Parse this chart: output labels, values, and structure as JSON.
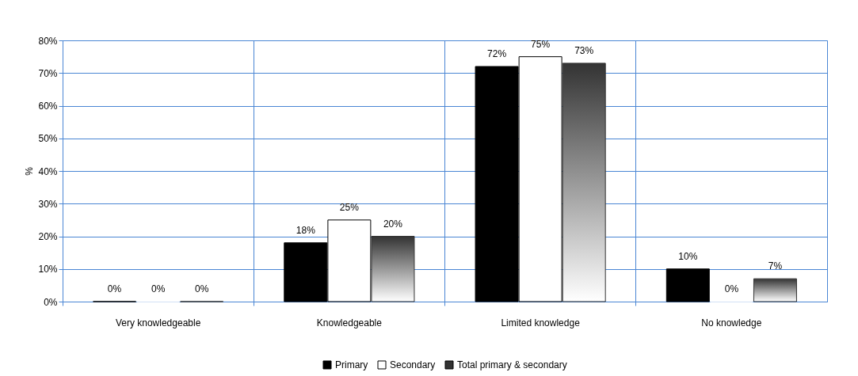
{
  "chart_data": {
    "type": "bar",
    "ylabel": "%",
    "categories": [
      "Very knowledgeable",
      "Knowledgeable",
      "Limited knowledge",
      "No knowledge"
    ],
    "series": [
      {
        "name": "Primary",
        "color": "#000000",
        "values": [
          0,
          18,
          72,
          10
        ],
        "value_labels": [
          "0%",
          "18%",
          "72%",
          "10%"
        ]
      },
      {
        "name": "Secondary",
        "color": "#ffffff",
        "values": [
          0,
          25,
          75,
          0
        ],
        "value_labels": [
          "0%",
          "25%",
          "75%",
          "0%"
        ]
      },
      {
        "name": "Total primary & secondary",
        "color": "#333333",
        "values": [
          0,
          20,
          73,
          7
        ],
        "value_labels": [
          "0%",
          "20%",
          "73%",
          "7%"
        ]
      }
    ],
    "ylim": [
      0,
      80
    ],
    "yticks": [
      {
        "value": 0,
        "label": "0%"
      },
      {
        "value": 10,
        "label": "10%"
      },
      {
        "value": 20,
        "label": "20%"
      },
      {
        "value": 30,
        "label": "30%"
      },
      {
        "value": 40,
        "label": "40%"
      },
      {
        "value": 50,
        "label": "50%"
      },
      {
        "value": 60,
        "label": "60%"
      },
      {
        "value": 70,
        "label": "70%"
      },
      {
        "value": 80,
        "label": "80%"
      }
    ],
    "grid": true,
    "legend": "bottom"
  }
}
